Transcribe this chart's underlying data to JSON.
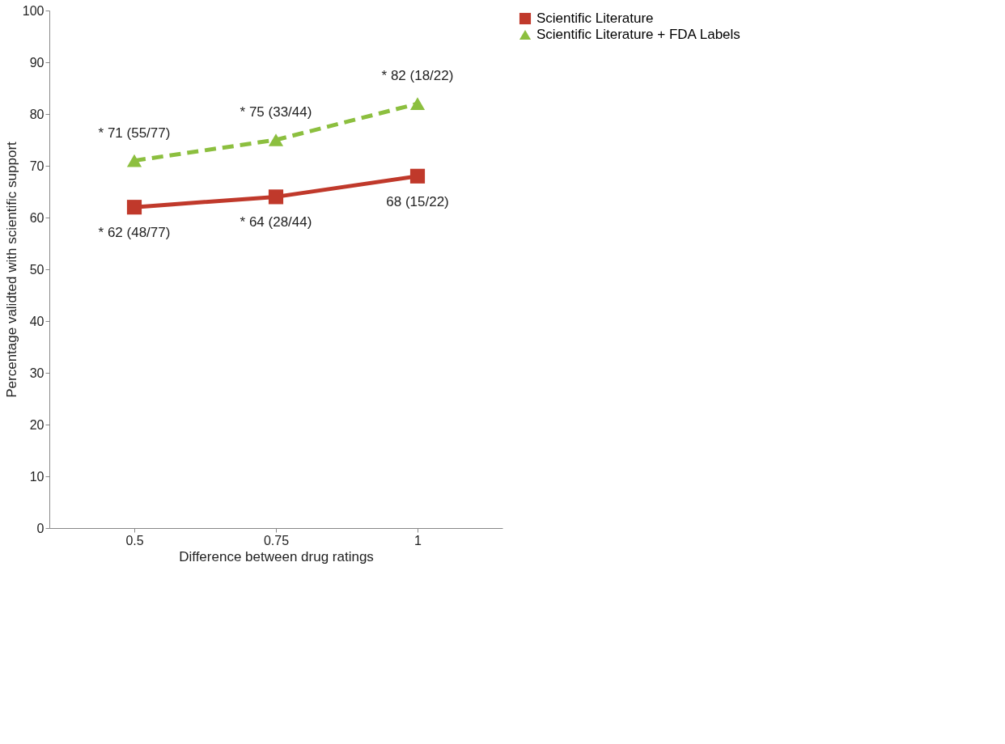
{
  "chart_data": {
    "type": "line",
    "xlabel": "Difference between drug ratings",
    "ylabel": "Percentage validted with scientific support",
    "categories": [
      "0.5",
      "0.75",
      "1"
    ],
    "series": [
      {
        "name": "Scientific Literature",
        "color": "#c0392b",
        "marker": "square",
        "line_style": "solid",
        "values": [
          62,
          64,
          68
        ],
        "value_labels": [
          "* 62 (48/77)",
          "* 64 (28/44)",
          "68 (15/22)"
        ]
      },
      {
        "name": "Scientific Literature + FDA Labels",
        "color": "#8cbf3f",
        "marker": "triangle",
        "line_style": "dashed",
        "values": [
          71,
          75,
          82
        ],
        "value_labels": [
          "* 71 (55/77)",
          "* 75 (33/44)",
          "* 82 (18/22)"
        ]
      }
    ],
    "ylim": [
      0,
      100
    ],
    "yticks": [
      0,
      10,
      20,
      30,
      40,
      50,
      60,
      70,
      80,
      90,
      100
    ],
    "grid": false,
    "legend": "right"
  }
}
